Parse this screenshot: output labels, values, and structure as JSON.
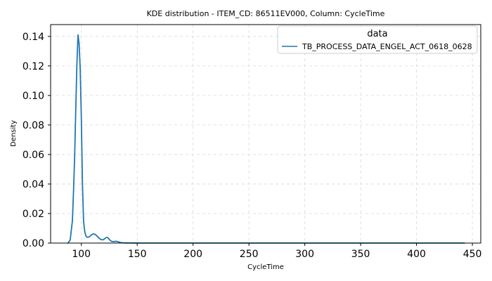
{
  "chart_data": {
    "type": "line",
    "title": "KDE distribution - ITEM_CD: 86511EV000, Column: CycleTime",
    "xlabel": "CycleTime",
    "ylabel": "Density",
    "xlim": [
      72.5,
      457.5
    ],
    "ylim": [
      0,
      0.148
    ],
    "xticks": [
      100,
      150,
      200,
      250,
      300,
      350,
      400,
      450
    ],
    "yticks": [
      0.0,
      0.02,
      0.04,
      0.06,
      0.08,
      0.1,
      0.12,
      0.14
    ],
    "ytick_labels": [
      "0.00",
      "0.02",
      "0.04",
      "0.06",
      "0.08",
      "0.10",
      "0.12",
      "0.14"
    ],
    "grid": true,
    "legend": {
      "title": "data",
      "placement": "top-right"
    },
    "colors": {
      "series": "#1f77b4",
      "grid": "#d9d9d9",
      "axis": "#000000"
    },
    "series": [
      {
        "name": "TB_PROCESS_DATA_ENGEL_ACT_0618_0628",
        "x": [
          88,
          90,
          92,
          93,
          94,
          95,
          96,
          97,
          98,
          99,
          100,
          101,
          102,
          103,
          104,
          105,
          106,
          107,
          108,
          109,
          110,
          111,
          112,
          113,
          114,
          115,
          116,
          117,
          118,
          119,
          120,
          121,
          122,
          123,
          124,
          125,
          126,
          127,
          128,
          129,
          130,
          131,
          132,
          133,
          134,
          135,
          136,
          137,
          138,
          139,
          140,
          141,
          142,
          143,
          144,
          145,
          146,
          148,
          150,
          155,
          160,
          170,
          180,
          200,
          250,
          300,
          350,
          400,
          443
        ],
        "y": [
          0.0,
          0.002,
          0.015,
          0.035,
          0.058,
          0.09,
          0.12,
          0.141,
          0.135,
          0.118,
          0.085,
          0.04,
          0.015,
          0.008,
          0.005,
          0.004,
          0.004,
          0.0042,
          0.0048,
          0.0055,
          0.006,
          0.0062,
          0.006,
          0.0055,
          0.0048,
          0.004,
          0.0033,
          0.0027,
          0.0023,
          0.0022,
          0.0024,
          0.003,
          0.0036,
          0.0038,
          0.0034,
          0.0025,
          0.0017,
          0.0012,
          0.001,
          0.001,
          0.0011,
          0.0012,
          0.0011,
          0.0009,
          0.0006,
          0.0004,
          0.0003,
          0.0002,
          0.00015,
          0.0001,
          0.0001,
          0.0001,
          0.0001,
          8e-05,
          5e-05,
          5e-05,
          4e-05,
          3e-05,
          2e-05,
          1e-05,
          1e-05,
          1e-05,
          0.0,
          0.0,
          0.0,
          0.0,
          0.0,
          0.0,
          0.0
        ]
      }
    ]
  }
}
